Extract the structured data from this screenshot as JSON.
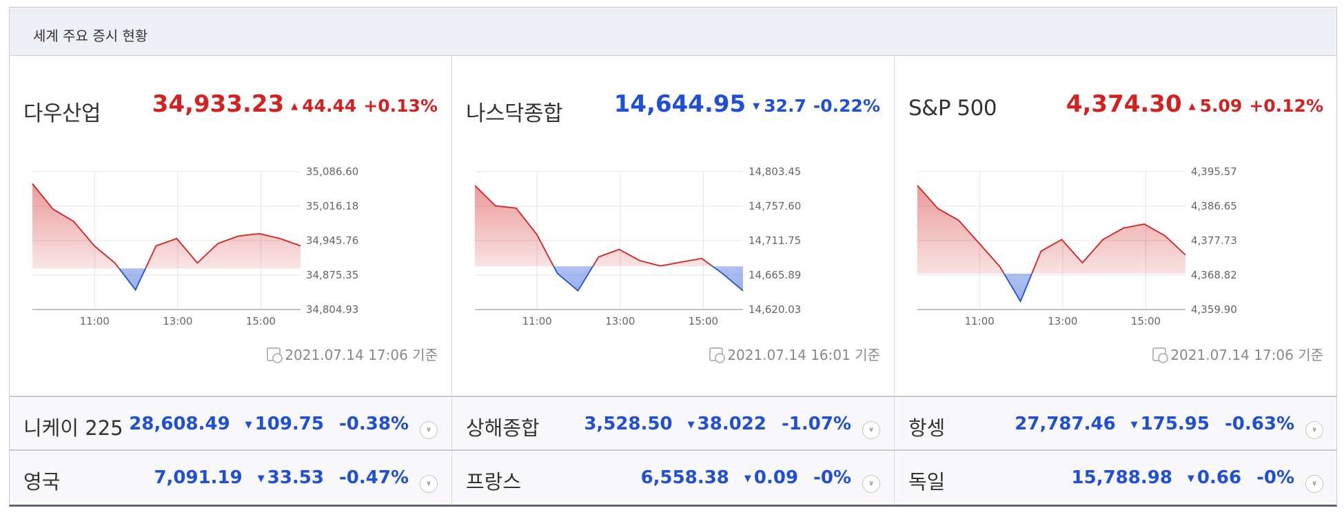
{
  "header": {
    "title": "세계 주요 증시 현황"
  },
  "colors": {
    "up": "#d3211f",
    "down": "#1e4fd6"
  },
  "indices": [
    {
      "id": "dow",
      "name": "다우산업",
      "value": "34,933.23",
      "direction": "up",
      "arrow": "▲",
      "change": "44.44",
      "percent": "+0.13%",
      "timestamp": "2021.07.14 17:06 기준",
      "ticks_y": [
        "35,086.60",
        "35,016.18",
        "34,945.76",
        "34,875.35",
        "34,804.93"
      ],
      "ticks_x": [
        "11:00",
        "13:00",
        "15:00"
      ]
    },
    {
      "id": "nasdaq",
      "name": "나스닥종합",
      "value": "14,644.95",
      "direction": "down",
      "arrow": "▼",
      "change": "32.7",
      "percent": "-0.22%",
      "timestamp": "2021.07.14 16:01 기준",
      "ticks_y": [
        "14,803.45",
        "14,757.60",
        "14,711.75",
        "14,665.89",
        "14,620.03"
      ],
      "ticks_x": [
        "11:00",
        "13:00",
        "15:00"
      ]
    },
    {
      "id": "sp500",
      "name": "S&P 500",
      "value": "4,374.30",
      "direction": "up",
      "arrow": "▲",
      "change": "5.09",
      "percent": "+0.12%",
      "timestamp": "2021.07.14 17:06 기준",
      "ticks_y": [
        "4,395.57",
        "4,386.65",
        "4,377.73",
        "4,368.82",
        "4,359.90"
      ],
      "ticks_x": [
        "11:00",
        "13:00",
        "15:00"
      ]
    }
  ],
  "chart_data": [
    {
      "type": "area",
      "title": "다우산업",
      "x": [
        "09:30",
        "10:00",
        "10:30",
        "11:00",
        "11:30",
        "12:00",
        "12:30",
        "13:00",
        "13:30",
        "14:00",
        "14:30",
        "15:00",
        "15:30",
        "16:00"
      ],
      "y": [
        35062,
        35010,
        34985,
        34935,
        34900,
        34845,
        34935,
        34950,
        34900,
        34940,
        34955,
        34960,
        34950,
        34935
      ],
      "baseline": 34889,
      "ylim": [
        34804.93,
        35086.6
      ],
      "grid": true
    },
    {
      "type": "area",
      "title": "나스닥종합",
      "x": [
        "09:30",
        "10:00",
        "10:30",
        "11:00",
        "11:30",
        "12:00",
        "12:30",
        "13:00",
        "13:30",
        "14:00",
        "14:30",
        "15:00",
        "15:30",
        "16:00"
      ],
      "y": [
        14785,
        14758,
        14755,
        14720,
        14668,
        14645,
        14690,
        14700,
        14685,
        14678,
        14683,
        14688,
        14668,
        14645
      ],
      "baseline": 14677.6,
      "ylim": [
        14620.03,
        14803.45
      ],
      "grid": true
    },
    {
      "type": "area",
      "title": "S&P 500",
      "x": [
        "09:30",
        "10:00",
        "10:30",
        "11:00",
        "11:30",
        "12:00",
        "12:30",
        "13:00",
        "13:30",
        "14:00",
        "14:30",
        "15:00",
        "15:30",
        "16:00"
      ],
      "y": [
        4392,
        4386,
        4383,
        4377,
        4371,
        4362,
        4375,
        4378,
        4372,
        4378,
        4381,
        4382,
        4379,
        4374
      ],
      "baseline": 4369.2,
      "ylim": [
        4359.9,
        4395.57
      ],
      "grid": true
    }
  ],
  "rows": [
    [
      {
        "name": "니케이 225",
        "value": "28,608.49",
        "arrow": "▼",
        "change": "109.75",
        "percent": "-0.38%",
        "direction": "down"
      },
      {
        "name": "상해종합",
        "value": "3,528.50",
        "arrow": "▼",
        "change": "38.022",
        "percent": "-1.07%",
        "direction": "down"
      },
      {
        "name": "항셍",
        "value": "27,787.46",
        "arrow": "▼",
        "change": "175.95",
        "percent": "-0.63%",
        "direction": "down"
      }
    ],
    [
      {
        "name": "영국",
        "value": "7,091.19",
        "arrow": "▼",
        "change": "33.53",
        "percent": "-0.47%",
        "direction": "down"
      },
      {
        "name": "프랑스",
        "value": "6,558.38",
        "arrow": "▼",
        "change": "0.09",
        "percent": "-0%",
        "direction": "down"
      },
      {
        "name": "독일",
        "value": "15,788.98",
        "arrow": "▼",
        "change": "0.66",
        "percent": "-0%",
        "direction": "down"
      }
    ]
  ]
}
